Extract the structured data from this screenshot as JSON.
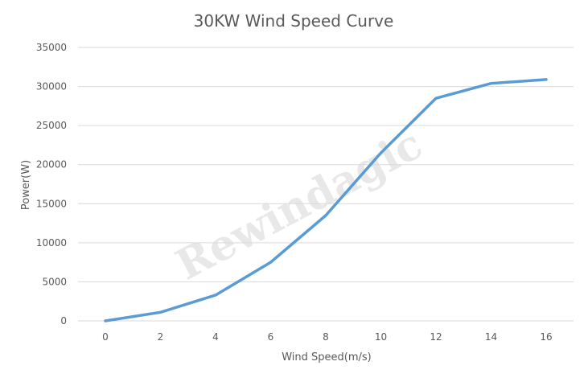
{
  "chart_data": {
    "type": "line",
    "title": "30KW Wind Speed Curve",
    "xlabel": "Wind Speed(m/s)",
    "ylabel": "Power(W)",
    "x": [
      0,
      2,
      4,
      6,
      8,
      10,
      12,
      14,
      16
    ],
    "series": [
      {
        "values": [
          0,
          1100,
          3300,
          7500,
          13500,
          21500,
          28500,
          30400,
          30900
        ]
      }
    ],
    "ylim": [
      0,
      35000
    ],
    "yticks": [
      0,
      5000,
      10000,
      15000,
      20000,
      25000,
      30000,
      35000
    ],
    "xticks": [
      0,
      2,
      4,
      6,
      8,
      10,
      12,
      14,
      16
    ],
    "grid": "horizontal",
    "legend": "none",
    "line_color": "#5b9bd5",
    "watermark": "Rewindagic"
  }
}
